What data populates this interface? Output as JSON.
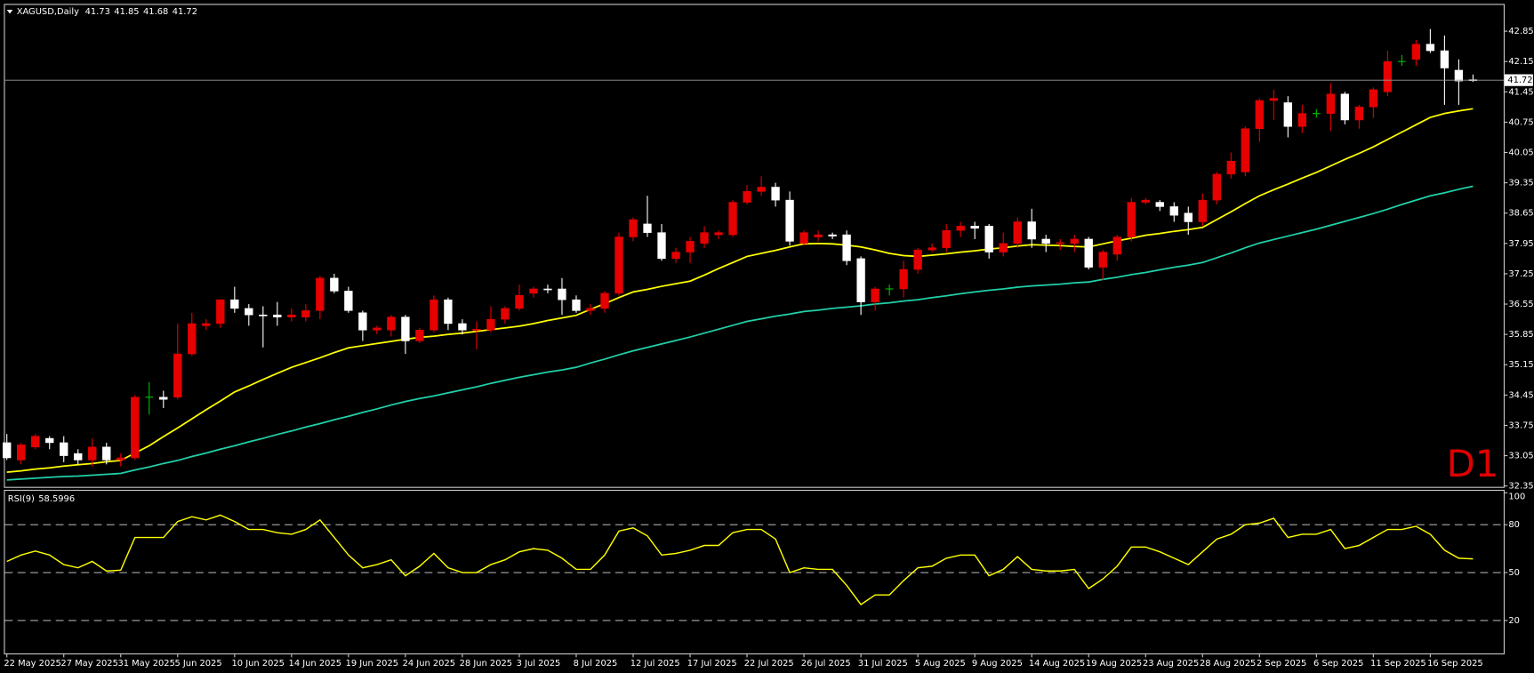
{
  "chart_data": [
    {
      "type": "candlestick",
      "symbol": "XAGUSD,Daily",
      "timeframe": "D1",
      "categories": [
        "22 May 2025",
        null,
        null,
        null,
        "27 May 2025",
        null,
        null,
        null,
        "31 May 2025",
        null,
        null,
        null,
        "5 Jun 2025",
        null,
        null,
        null,
        "10 Jun 2025",
        null,
        null,
        null,
        "14 Jun 2025",
        null,
        null,
        null,
        "19 Jun 2025",
        null,
        null,
        null,
        "24 Jun 2025",
        null,
        null,
        null,
        "28 Jun 2025",
        null,
        null,
        null,
        "3 Jul 2025",
        null,
        null,
        null,
        "8 Jul 2025",
        null,
        null,
        null,
        "12 Jul 2025",
        null,
        null,
        null,
        "17 Jul 2025",
        null,
        null,
        null,
        "22 Jul 2025",
        null,
        null,
        null,
        "26 Jul 2025",
        null,
        null,
        null,
        "31 Jul 2025",
        null,
        null,
        null,
        "5 Aug 2025",
        null,
        null,
        null,
        "9 Aug 2025",
        null,
        null,
        null,
        "14 Aug 2025",
        null,
        null,
        null,
        "19 Aug 2025",
        null,
        null,
        null,
        "23 Aug 2025",
        null,
        null,
        null,
        "28 Aug 2025",
        null,
        null,
        null,
        "2 Sep 2025",
        null,
        null,
        null,
        "6 Sep 2025",
        null,
        null,
        null,
        "11 Sep 2025",
        null,
        null,
        null,
        "16 Sep 2025",
        null,
        null,
        null
      ],
      "open": [
        33.35,
        32.95,
        33.25,
        33.45,
        33.35,
        33.1,
        32.95,
        33.25,
        32.95,
        33.0,
        34.4,
        34.4,
        34.4,
        35.4,
        36.05,
        36.1,
        36.65,
        36.45,
        36.3,
        36.3,
        36.25,
        36.25,
        36.4,
        37.15,
        36.85,
        36.35,
        35.95,
        35.95,
        36.25,
        35.7,
        35.95,
        36.65,
        36.1,
        35.95,
        35.95,
        36.2,
        36.45,
        36.8,
        36.9,
        36.9,
        36.65,
        36.4,
        36.45,
        36.8,
        38.1,
        38.4,
        38.2,
        37.6,
        37.75,
        37.95,
        38.15,
        38.15,
        38.9,
        39.15,
        39.25,
        38.95,
        37.95,
        38.1,
        38.15,
        38.15,
        37.6,
        36.6,
        36.9,
        36.9,
        37.35,
        37.8,
        37.85,
        38.25,
        38.35,
        38.35,
        37.75,
        37.95,
        38.45,
        38.05,
        37.95,
        37.95,
        38.05,
        37.4,
        37.7,
        38.1,
        38.9,
        38.9,
        38.8,
        38.65,
        38.45,
        38.95,
        39.55,
        39.6,
        40.6,
        41.25,
        41.2,
        40.65,
        40.95,
        40.95,
        41.4,
        40.8,
        41.1,
        41.45,
        42.15,
        42.2,
        42.55,
        42.4,
        41.95,
        41.73
      ],
      "high": [
        33.55,
        33.35,
        33.55,
        33.5,
        33.5,
        33.2,
        33.45,
        33.35,
        33.1,
        34.45,
        34.75,
        34.55,
        36.1,
        36.35,
        36.2,
        36.65,
        36.95,
        36.55,
        36.5,
        36.6,
        36.45,
        36.55,
        37.2,
        37.25,
        36.95,
        36.4,
        36.05,
        36.3,
        36.3,
        36.0,
        36.75,
        36.7,
        36.2,
        36.15,
        36.5,
        36.5,
        37.0,
        36.95,
        37.0,
        37.15,
        36.75,
        36.55,
        36.85,
        38.2,
        38.55,
        39.05,
        38.4,
        37.85,
        38.1,
        38.35,
        38.25,
        38.95,
        39.3,
        39.5,
        39.35,
        39.15,
        38.25,
        38.25,
        38.2,
        38.25,
        37.65,
        36.95,
        37.0,
        37.55,
        37.85,
        37.95,
        38.4,
        38.45,
        38.45,
        38.4,
        38.2,
        38.55,
        38.75,
        38.15,
        38.05,
        38.15,
        38.1,
        37.8,
        38.15,
        39.0,
        39.0,
        38.95,
        38.9,
        38.8,
        39.1,
        39.6,
        40.05,
        40.65,
        41.3,
        41.5,
        41.35,
        41.15,
        41.05,
        41.65,
        41.45,
        41.15,
        41.55,
        42.4,
        42.3,
        42.65,
        42.9,
        42.75,
        42.2,
        41.85
      ],
      "low": [
        32.95,
        32.85,
        33.2,
        33.2,
        32.9,
        32.85,
        32.8,
        32.85,
        32.8,
        32.95,
        34.0,
        34.15,
        34.35,
        35.35,
        35.95,
        36.0,
        36.35,
        36.05,
        35.55,
        36.05,
        36.15,
        36.15,
        36.2,
        36.8,
        36.35,
        35.7,
        35.85,
        35.8,
        35.4,
        35.65,
        35.9,
        35.95,
        35.85,
        35.5,
        35.9,
        36.1,
        36.4,
        36.7,
        36.8,
        36.3,
        36.35,
        36.3,
        36.35,
        36.75,
        38.0,
        38.1,
        37.55,
        37.5,
        37.5,
        37.85,
        38.05,
        38.1,
        38.85,
        39.05,
        38.8,
        37.9,
        37.9,
        38.0,
        38.05,
        37.45,
        36.3,
        36.4,
        36.75,
        36.7,
        37.25,
        37.75,
        37.75,
        38.1,
        38.05,
        37.6,
        37.65,
        37.85,
        37.85,
        37.75,
        37.8,
        37.75,
        37.35,
        37.1,
        37.55,
        38.0,
        38.85,
        38.7,
        38.45,
        38.15,
        38.35,
        38.85,
        39.45,
        39.5,
        40.3,
        40.8,
        40.4,
        40.5,
        40.85,
        40.55,
        40.7,
        40.6,
        40.85,
        41.35,
        42.05,
        42.05,
        42.35,
        41.15,
        41.15,
        41.68
      ],
      "close": [
        33.0,
        33.3,
        33.5,
        33.35,
        33.05,
        32.95,
        33.25,
        32.95,
        33.0,
        34.4,
        34.4,
        34.35,
        35.4,
        36.1,
        36.1,
        36.65,
        36.45,
        36.3,
        36.28,
        36.25,
        36.3,
        36.4,
        37.15,
        36.85,
        36.4,
        35.95,
        36.0,
        36.25,
        35.7,
        35.95,
        36.65,
        36.1,
        35.95,
        35.97,
        36.2,
        36.45,
        36.75,
        36.9,
        36.88,
        36.65,
        36.4,
        36.45,
        36.8,
        38.1,
        38.5,
        38.2,
        37.6,
        37.75,
        38.0,
        38.2,
        38.2,
        38.9,
        39.15,
        39.25,
        38.95,
        38.0,
        38.2,
        38.15,
        38.12,
        37.55,
        36.6,
        36.9,
        36.9,
        37.35,
        37.8,
        37.85,
        38.25,
        38.35,
        38.3,
        37.75,
        37.95,
        38.45,
        38.05,
        37.95,
        37.97,
        38.05,
        37.4,
        37.75,
        38.1,
        38.9,
        38.95,
        38.8,
        38.6,
        38.45,
        38.95,
        39.55,
        39.85,
        40.6,
        41.25,
        41.3,
        40.65,
        40.95,
        40.95,
        41.4,
        40.8,
        41.1,
        41.5,
        42.15,
        42.15,
        42.55,
        42.4,
        42.0,
        41.7,
        41.72
      ],
      "up_color": "#e60000",
      "down_color": "#ffffff",
      "doji_color": "#00c000",
      "series": [
        {
          "color": "#ffff00",
          "values": [
            32.67,
            32.7,
            32.74,
            32.77,
            32.81,
            32.84,
            32.87,
            32.91,
            32.94,
            33.11,
            33.28,
            33.49,
            33.69,
            33.9,
            34.11,
            34.31,
            34.52,
            34.66,
            34.81,
            34.95,
            35.09,
            35.2,
            35.31,
            35.43,
            35.54,
            35.59,
            35.64,
            35.69,
            35.74,
            35.78,
            35.81,
            35.85,
            35.88,
            35.92,
            35.96,
            36.0,
            36.04,
            36.1,
            36.17,
            36.23,
            36.29,
            36.43,
            36.56,
            36.7,
            36.83,
            36.89,
            36.96,
            37.02,
            37.08,
            37.22,
            37.37,
            37.51,
            37.65,
            37.72,
            37.79,
            37.87,
            37.94,
            37.95,
            37.94,
            37.91,
            37.87,
            37.8,
            37.72,
            37.67,
            37.65,
            37.68,
            37.71,
            37.75,
            37.78,
            37.82,
            37.85,
            37.89,
            37.92,
            37.91,
            37.9,
            37.88,
            37.87,
            37.94,
            38.01,
            38.07,
            38.14,
            38.18,
            38.23,
            38.27,
            38.32,
            38.5,
            38.68,
            38.87,
            39.05,
            39.19,
            39.32,
            39.46,
            39.59,
            39.74,
            39.89,
            40.03,
            40.18,
            40.35,
            40.52,
            40.69,
            40.86,
            40.95,
            41.01,
            41.06
          ]
        },
        {
          "color": "#20d0a8",
          "values": [
            32.49,
            32.51,
            32.53,
            32.55,
            32.57,
            32.58,
            32.6,
            32.62,
            32.64,
            32.72,
            32.79,
            32.87,
            32.94,
            33.03,
            33.11,
            33.2,
            33.28,
            33.37,
            33.45,
            33.54,
            33.62,
            33.71,
            33.79,
            33.88,
            33.96,
            34.05,
            34.13,
            34.22,
            34.3,
            34.37,
            34.43,
            34.5,
            34.57,
            34.64,
            34.72,
            34.79,
            34.86,
            34.92,
            34.98,
            35.03,
            35.09,
            35.19,
            35.28,
            35.38,
            35.47,
            35.55,
            35.63,
            35.71,
            35.79,
            35.88,
            35.97,
            36.06,
            36.15,
            36.21,
            36.27,
            36.32,
            36.38,
            36.41,
            36.45,
            36.48,
            36.51,
            36.55,
            36.58,
            36.62,
            36.65,
            36.7,
            36.74,
            36.79,
            36.83,
            36.87,
            36.9,
            36.94,
            36.97,
            36.99,
            37.01,
            37.04,
            37.06,
            37.12,
            37.17,
            37.23,
            37.28,
            37.34,
            37.4,
            37.45,
            37.51,
            37.62,
            37.73,
            37.85,
            37.96,
            38.04,
            38.12,
            38.2,
            38.28,
            38.37,
            38.46,
            38.55,
            38.64,
            38.74,
            38.85,
            38.95,
            39.05,
            39.12,
            39.2,
            39.27
          ]
        }
      ],
      "ylim": [
        32.33,
        43.48
      ],
      "yticks": [
        32.35,
        33.05,
        33.75,
        34.45,
        35.15,
        35.85,
        36.55,
        37.25,
        37.95,
        38.65,
        39.35,
        40.05,
        40.75,
        41.45,
        42.15,
        42.85
      ]
    },
    {
      "type": "line",
      "title": "RSI(9)",
      "color": "#ffff00",
      "values": [
        57,
        61,
        63.5,
        61,
        55,
        53,
        57,
        51,
        51.5,
        72,
        72,
        72,
        82,
        85,
        83,
        86,
        82,
        77,
        77,
        75,
        74,
        77,
        83,
        72,
        61,
        53,
        55,
        58,
        48,
        54,
        62,
        53,
        50,
        50,
        55,
        58,
        63,
        65,
        64,
        59,
        52,
        52,
        61,
        76,
        78,
        73,
        61,
        62,
        64,
        67,
        67,
        75,
        77,
        77,
        71,
        50,
        53,
        52,
        52,
        42,
        30,
        36,
        36,
        45,
        53,
        54,
        59,
        61,
        61,
        48,
        52,
        60,
        52,
        51,
        51,
        52,
        40,
        46,
        54,
        66,
        66,
        63,
        59,
        55,
        63,
        71,
        74,
        80,
        81,
        84,
        72,
        74,
        74,
        77,
        65,
        67,
        72,
        77,
        77,
        79,
        74,
        64,
        59,
        58.5996
      ],
      "ylim": [
        0,
        100
      ],
      "yticks": [
        20,
        50,
        80,
        100
      ],
      "levels": [
        20,
        50,
        80
      ]
    }
  ]
}
